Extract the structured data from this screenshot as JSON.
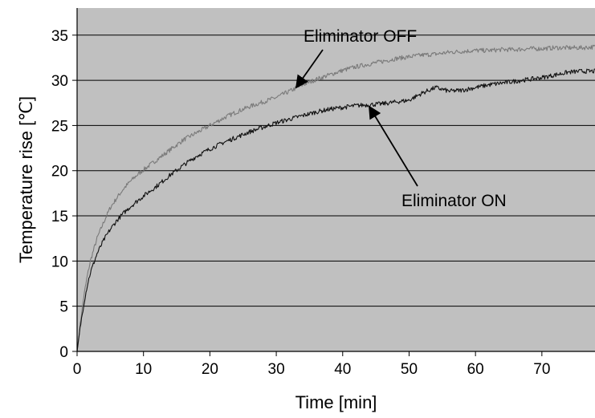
{
  "chart_data": {
    "type": "line",
    "title": "",
    "xlabel": "Time [min]",
    "ylabel": "Temperature rise [℃]",
    "xlim": [
      0,
      78
    ],
    "ylim": [
      0,
      38
    ],
    "x_ticks": [
      0,
      10,
      20,
      30,
      40,
      50,
      60,
      70
    ],
    "y_ticks": [
      0,
      5,
      10,
      15,
      20,
      25,
      30,
      35
    ],
    "grid": "horizontal",
    "plot_background": "#c0c0c0",
    "legend": "none",
    "series": [
      {
        "label": "Eliminator OFF",
        "color": "#7a7a7a",
        "x": [
          0,
          0.5,
          1,
          1.5,
          2,
          3,
          4,
          5,
          6,
          7,
          8,
          9,
          10,
          12,
          14,
          16,
          18,
          20,
          22,
          24,
          26,
          28,
          30,
          32,
          34,
          36,
          38,
          40,
          42,
          44,
          46,
          48,
          50,
          52,
          54,
          56,
          58,
          60,
          62,
          64,
          66,
          68,
          70,
          72,
          74,
          76,
          78
        ],
        "y": [
          0,
          3.2,
          6,
          8.2,
          10,
          12.5,
          14.3,
          15.9,
          17,
          18,
          18.8,
          19.5,
          20.1,
          21.2,
          22.3,
          23.4,
          24.2,
          25,
          25.8,
          26.5,
          27.1,
          27.6,
          28.1,
          28.8,
          29.5,
          30.1,
          30.6,
          31.1,
          31.5,
          31.8,
          32.1,
          32.4,
          32.6,
          32.8,
          32.9,
          33.1,
          33.2,
          33.3,
          33.3,
          33.4,
          33.4,
          33.5,
          33.5,
          33.6,
          33.6,
          33.6,
          33.7
        ]
      },
      {
        "label": "Eliminator ON",
        "color": "#111111",
        "x": [
          0,
          0.5,
          1,
          1.5,
          2,
          3,
          4,
          5,
          6,
          7,
          8,
          9,
          10,
          12,
          14,
          16,
          18,
          20,
          22,
          24,
          26,
          28,
          30,
          32,
          34,
          36,
          38,
          40,
          42,
          44,
          46,
          48,
          50,
          52,
          54,
          56,
          58,
          60,
          62,
          64,
          66,
          68,
          70,
          72,
          74,
          76,
          78
        ],
        "y": [
          0,
          2.8,
          5.2,
          7.2,
          8.7,
          10.8,
          12.3,
          13.5,
          14.5,
          15.3,
          16,
          16.6,
          17.2,
          18.3,
          19.5,
          20.6,
          21.6,
          22.4,
          23.1,
          23.7,
          24.3,
          24.8,
          25.3,
          25.7,
          26.1,
          26.5,
          26.8,
          27,
          27.2,
          27.3,
          27.4,
          27.6,
          27.8,
          28.6,
          29.2,
          28.8,
          28.9,
          29.2,
          29.5,
          29.7,
          29.9,
          30.1,
          30.3,
          30.6,
          30.9,
          31,
          31
        ]
      }
    ],
    "annotations": [
      {
        "text": "Eliminator OFF",
        "target_series": "Eliminator OFF",
        "arrow_to": [
          33,
          29.2
        ]
      },
      {
        "text": "Eliminator ON",
        "target_series": "Eliminator ON",
        "arrow_to": [
          44,
          27.1
        ]
      }
    ]
  }
}
